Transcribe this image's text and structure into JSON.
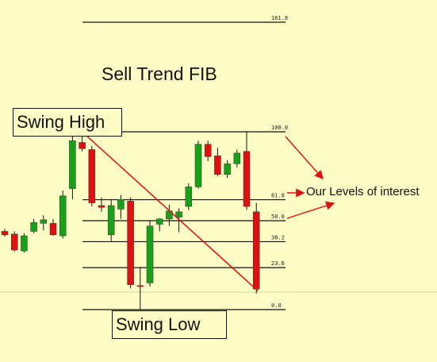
{
  "title": "Sell Trend FIB",
  "swing_high_label": "Swing High",
  "swing_low_label": "Swing Low",
  "interest_label": "Our Levels of interest",
  "colors": {
    "background": "#fdfdc5",
    "bull": "#18a018",
    "bear": "#e01010",
    "trend": "#e01010",
    "wick": "#111111",
    "level": "#111111"
  },
  "chart_data": {
    "type": "candlestick",
    "title": "Sell Trend FIB",
    "fib_levels": [
      {
        "label": "161.8",
        "value": 161.8
      },
      {
        "label": "100.0",
        "value": 100.0
      },
      {
        "label": "61.8",
        "value": 61.8
      },
      {
        "label": "50.0",
        "value": 50.0
      },
      {
        "label": "38.2",
        "value": 38.2
      },
      {
        "label": "23.6",
        "value": 23.6
      },
      {
        "label": "0.0",
        "value": 0.0
      }
    ],
    "candles": [
      {
        "o": 44.0,
        "h": 45.5,
        "l": 41.0,
        "c": 42.0
      },
      {
        "o": 42.5,
        "h": 44.0,
        "l": 32.5,
        "c": 33.5
      },
      {
        "o": 33.0,
        "h": 43.0,
        "l": 32.0,
        "c": 41.5
      },
      {
        "o": 44.0,
        "h": 51.0,
        "l": 43.0,
        "c": 49.0
      },
      {
        "o": 48.5,
        "h": 53.0,
        "l": 44.5,
        "c": 50.5
      },
      {
        "o": 48.5,
        "h": 51.0,
        "l": 41.5,
        "c": 42.0
      },
      {
        "o": 41.5,
        "h": 67.0,
        "l": 40.0,
        "c": 64.0
      },
      {
        "o": 68.0,
        "h": 98.0,
        "l": 62.0,
        "c": 95.0
      },
      {
        "o": 94.0,
        "h": 99.0,
        "l": 89.0,
        "c": 90.5
      },
      {
        "o": 90.0,
        "h": 92.0,
        "l": 58.0,
        "c": 60.0
      },
      {
        "o": 58.5,
        "h": 63.0,
        "l": 55.0,
        "c": 57.5
      },
      {
        "o": 42.0,
        "h": 62.0,
        "l": 38.5,
        "c": 58.5
      },
      {
        "o": 56.5,
        "h": 64.5,
        "l": 51.0,
        "c": 62.0
      },
      {
        "o": 61.0,
        "h": 63.0,
        "l": 12.0,
        "c": 14.0
      },
      {
        "o": 13.5,
        "h": 24.0,
        "l": 0.0,
        "c": 13.0
      },
      {
        "o": 15.0,
        "h": 50.0,
        "l": 13.0,
        "c": 47.0
      },
      {
        "o": 48.0,
        "h": 51.5,
        "l": 44.0,
        "c": 51.0
      },
      {
        "o": 51.0,
        "h": 59.0,
        "l": 47.0,
        "c": 55.5
      },
      {
        "o": 52.0,
        "h": 57.0,
        "l": 43.5,
        "c": 55.0
      },
      {
        "o": 58.0,
        "h": 71.0,
        "l": 56.0,
        "c": 69.0
      },
      {
        "o": 69.0,
        "h": 95.0,
        "l": 68.0,
        "c": 93.0
      },
      {
        "o": 93.0,
        "h": 95.0,
        "l": 83.5,
        "c": 86.0
      },
      {
        "o": 86.5,
        "h": 91.0,
        "l": 75.0,
        "c": 76.0
      },
      {
        "o": 76.0,
        "h": 84.0,
        "l": 74.0,
        "c": 82.0
      },
      {
        "o": 82.0,
        "h": 90.0,
        "l": 80.0,
        "c": 88.0
      },
      {
        "o": 89.0,
        "h": 100.0,
        "l": 56.0,
        "c": 58.0
      },
      {
        "o": 55.0,
        "h": 60.0,
        "l": 9.0,
        "c": 11.5
      }
    ],
    "trend_line": {
      "from": {
        "candle": 8,
        "value": 100.0
      },
      "to": {
        "candle": 26,
        "value": 10.5
      }
    }
  }
}
